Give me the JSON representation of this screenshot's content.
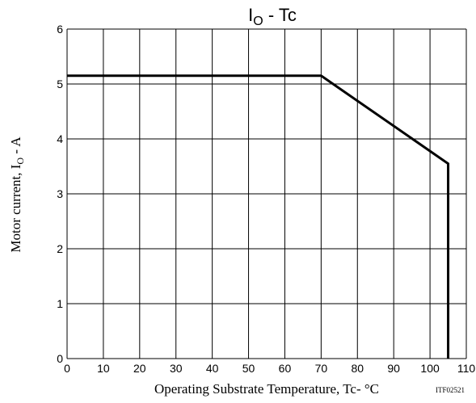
{
  "chart_data": {
    "type": "line",
    "title_main": "I",
    "title_sub": "O",
    "title_rest": " - Tc",
    "ylabel_main": "Motor current, I",
    "ylabel_sub": "O",
    "ylabel_rest": " - A",
    "xlabel": "Operating Substrate Temperature, Tc- °C",
    "code": "ITF02521",
    "xlim": [
      0,
      110
    ],
    "ylim": [
      0,
      6
    ],
    "x_ticks": [
      "0",
      "10",
      "20",
      "30",
      "40",
      "50",
      "60",
      "70",
      "80",
      "90",
      "100",
      "110"
    ],
    "y_ticks": [
      "0",
      "1",
      "2",
      "3",
      "4",
      "5",
      "6"
    ],
    "grid": true,
    "series": [
      {
        "x": [
          0,
          70,
          105,
          105
        ],
        "y": [
          5.15,
          5.15,
          3.55,
          0
        ]
      }
    ],
    "reference_line_y": 5.0
  }
}
